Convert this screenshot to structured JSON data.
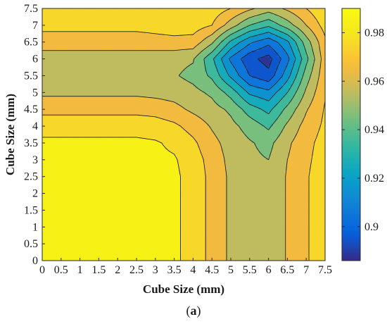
{
  "chart_data": {
    "type": "contour",
    "xlabel": "Cube Size (mm)",
    "ylabel": "Cube Size (mm)",
    "xlim": [
      0,
      7.5
    ],
    "ylim": [
      0,
      7.5
    ],
    "x_ticks": [
      "0",
      "0.5",
      "1",
      "1.5",
      "2",
      "2.5",
      "3",
      "3.5",
      "4",
      "4.5",
      "5",
      "5.5",
      "6",
      "6.5",
      "7",
      "7.5"
    ],
    "y_ticks": [
      "0",
      "0.5",
      "1",
      "1.5",
      "2",
      "2.5",
      "3",
      "3.5",
      "4",
      "4.5",
      "5",
      "5.5",
      "6",
      "6.5",
      "7",
      "7.5"
    ],
    "colorbar": {
      "range": [
        0.886,
        0.99
      ],
      "ticks": [
        "0.9",
        "0.92",
        "0.94",
        "0.96",
        "0.98"
      ],
      "tick_values": [
        0.9,
        0.92,
        0.94,
        0.96,
        0.98
      ],
      "colormap": "parula"
    },
    "grid": false,
    "levels": [
      0.89,
      0.9,
      0.91,
      0.92,
      0.93,
      0.94,
      0.95,
      0.96,
      0.97,
      0.98
    ],
    "x": [
      0,
      0.5,
      1,
      1.5,
      2,
      2.5,
      3,
      3.5,
      4,
      4.5,
      5,
      5.5,
      6,
      6.5,
      7,
      7.5
    ],
    "y": [
      0,
      0.5,
      1,
      1.5,
      2,
      2.5,
      3,
      3.5,
      4,
      4.5,
      5,
      5.5,
      6,
      6.5,
      7,
      7.5
    ],
    "z": [
      [
        0.982,
        0.982,
        0.982,
        0.982,
        0.982,
        0.982,
        0.982,
        0.982,
        0.976,
        0.967,
        0.958,
        0.953,
        0.951,
        0.961,
        0.969,
        0.976
      ],
      [
        0.982,
        0.982,
        0.982,
        0.982,
        0.982,
        0.982,
        0.982,
        0.982,
        0.976,
        0.967,
        0.958,
        0.953,
        0.951,
        0.961,
        0.969,
        0.976
      ],
      [
        0.982,
        0.982,
        0.982,
        0.982,
        0.982,
        0.982,
        0.982,
        0.982,
        0.976,
        0.967,
        0.958,
        0.953,
        0.951,
        0.961,
        0.969,
        0.976
      ],
      [
        0.982,
        0.982,
        0.982,
        0.982,
        0.982,
        0.982,
        0.982,
        0.982,
        0.976,
        0.967,
        0.958,
        0.953,
        0.951,
        0.961,
        0.969,
        0.976
      ],
      [
        0.982,
        0.982,
        0.982,
        0.982,
        0.982,
        0.982,
        0.982,
        0.982,
        0.976,
        0.967,
        0.958,
        0.953,
        0.951,
        0.961,
        0.969,
        0.976
      ],
      [
        0.982,
        0.982,
        0.982,
        0.982,
        0.982,
        0.982,
        0.982,
        0.982,
        0.976,
        0.967,
        0.958,
        0.953,
        0.951,
        0.961,
        0.969,
        0.976
      ],
      [
        0.982,
        0.982,
        0.982,
        0.982,
        0.982,
        0.982,
        0.982,
        0.981,
        0.975,
        0.966,
        0.957,
        0.952,
        0.95,
        0.96,
        0.968,
        0.975
      ],
      [
        0.982,
        0.982,
        0.982,
        0.982,
        0.982,
        0.982,
        0.981,
        0.978,
        0.972,
        0.963,
        0.956,
        0.951,
        0.947,
        0.958,
        0.967,
        0.974
      ],
      [
        0.976,
        0.976,
        0.976,
        0.976,
        0.976,
        0.976,
        0.975,
        0.972,
        0.966,
        0.959,
        0.953,
        0.946,
        0.938,
        0.952,
        0.964,
        0.972
      ],
      [
        0.967,
        0.967,
        0.967,
        0.967,
        0.967,
        0.967,
        0.966,
        0.963,
        0.958,
        0.954,
        0.948,
        0.935,
        0.927,
        0.943,
        0.959,
        0.971
      ],
      [
        0.958,
        0.958,
        0.958,
        0.958,
        0.958,
        0.958,
        0.957,
        0.956,
        0.953,
        0.948,
        0.936,
        0.918,
        0.913,
        0.93,
        0.952,
        0.969
      ],
      [
        0.953,
        0.953,
        0.953,
        0.953,
        0.953,
        0.953,
        0.952,
        0.951,
        0.947,
        0.938,
        0.918,
        0.9,
        0.893,
        0.916,
        0.945,
        0.967
      ],
      [
        0.955,
        0.955,
        0.955,
        0.955,
        0.955,
        0.955,
        0.954,
        0.953,
        0.951,
        0.932,
        0.908,
        0.893,
        0.886,
        0.907,
        0.937,
        0.966
      ],
      [
        0.965,
        0.965,
        0.965,
        0.965,
        0.965,
        0.965,
        0.966,
        0.967,
        0.966,
        0.952,
        0.928,
        0.912,
        0.903,
        0.918,
        0.945,
        0.968
      ],
      [
        0.973,
        0.973,
        0.973,
        0.973,
        0.973,
        0.973,
        0.974,
        0.975,
        0.975,
        0.97,
        0.955,
        0.94,
        0.932,
        0.945,
        0.96,
        0.974
      ],
      [
        0.978,
        0.978,
        0.978,
        0.978,
        0.978,
        0.978,
        0.978,
        0.978,
        0.978,
        0.976,
        0.97,
        0.962,
        0.955,
        0.962,
        0.97,
        0.979
      ]
    ]
  },
  "caption": {
    "open": "(",
    "label": "a",
    "close": ")"
  }
}
